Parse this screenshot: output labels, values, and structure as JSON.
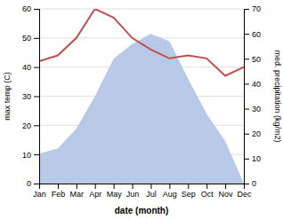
{
  "chart_data": {
    "type": "line",
    "x_label": "date (month)",
    "y_label": "max temp (C)",
    "y2_label": "med. precipitation (kg/m2)",
    "categories": [
      "Jan",
      "Feb",
      "Mar",
      "Apr",
      "May",
      "Jun",
      "Jul",
      "Aug",
      "Sep",
      "Oct",
      "Nov",
      "Dec"
    ],
    "series": [
      {
        "type": "area",
        "axis": "y2",
        "color": "#b8c9e8",
        "values": [
          12,
          14,
          22,
          35,
          50,
          56,
          60,
          57,
          42,
          28,
          17,
          0
        ]
      },
      {
        "type": "line",
        "color": "#c0504d",
        "values": [
          42,
          44,
          50,
          60,
          57,
          50,
          46,
          43,
          44,
          43,
          37,
          40
        ]
      }
    ],
    "ylim": [
      0,
      60
    ],
    "yticks": [
      0,
      10,
      20,
      30,
      40,
      50,
      60
    ],
    "y2lim": [
      0,
      70
    ],
    "y2ticks": [
      0,
      10,
      20,
      30,
      40,
      50,
      60,
      70
    ],
    "grid": true
  }
}
